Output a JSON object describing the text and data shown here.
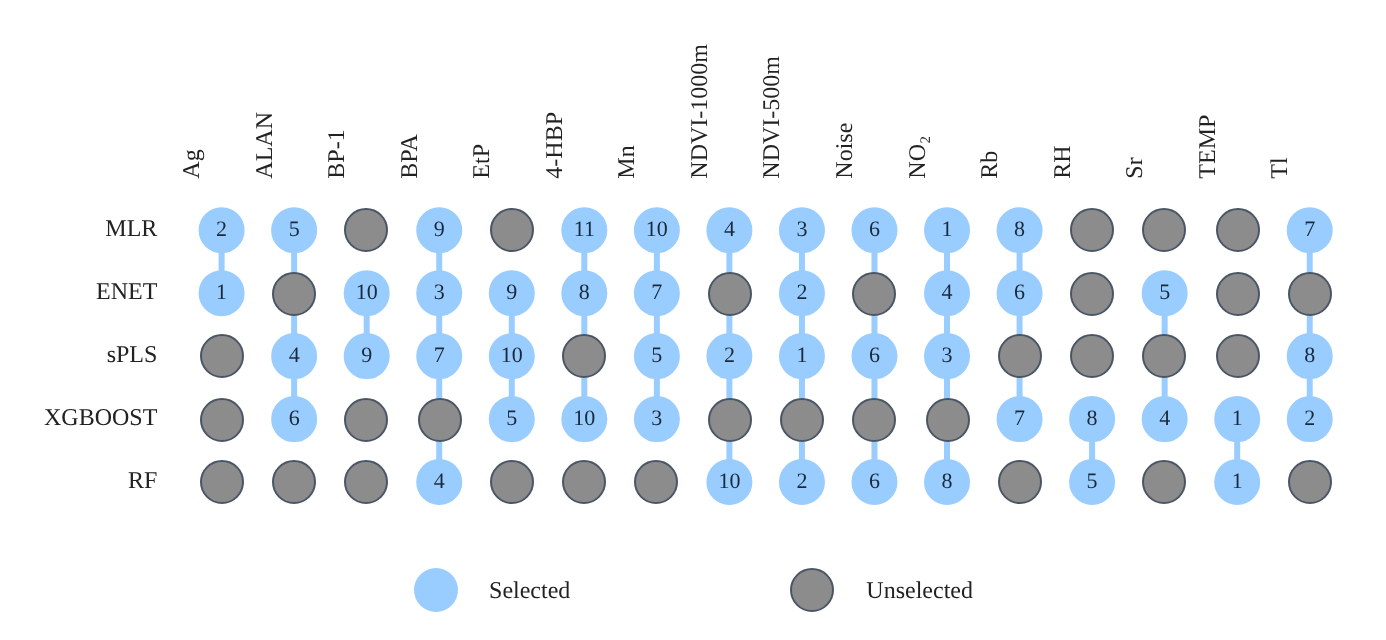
{
  "chart_data": {
    "type": "heatmap",
    "categories": [
      "Ag",
      "ALAN",
      "BP-1",
      "BPA",
      "EtP",
      "4-HBP",
      "Mn",
      "NDVI-1000m",
      "NDVI-500m",
      "Noise",
      "NO₂",
      "Rb",
      "RH",
      "Sr",
      "TEMP",
      "Tl"
    ],
    "y_categories": [
      "MLR",
      "ENET",
      "sPLS",
      "XGBOOST",
      "RF"
    ],
    "cells": [
      [
        2,
        5,
        null,
        9,
        null,
        11,
        10,
        4,
        3,
        6,
        1,
        8,
        null,
        null,
        null,
        7
      ],
      [
        1,
        null,
        10,
        3,
        9,
        8,
        7,
        null,
        2,
        null,
        4,
        6,
        null,
        5,
        null,
        null
      ],
      [
        null,
        4,
        9,
        7,
        10,
        null,
        5,
        2,
        1,
        6,
        3,
        null,
        null,
        null,
        null,
        8
      ],
      [
        null,
        6,
        null,
        null,
        5,
        10,
        3,
        null,
        null,
        null,
        null,
        7,
        8,
        4,
        1,
        2
      ],
      [
        null,
        null,
        null,
        4,
        null,
        null,
        null,
        10,
        2,
        6,
        8,
        null,
        5,
        null,
        1,
        null
      ]
    ],
    "data_labels": true,
    "annotations": [
      "Selected",
      "Unselected"
    ]
  }
}
